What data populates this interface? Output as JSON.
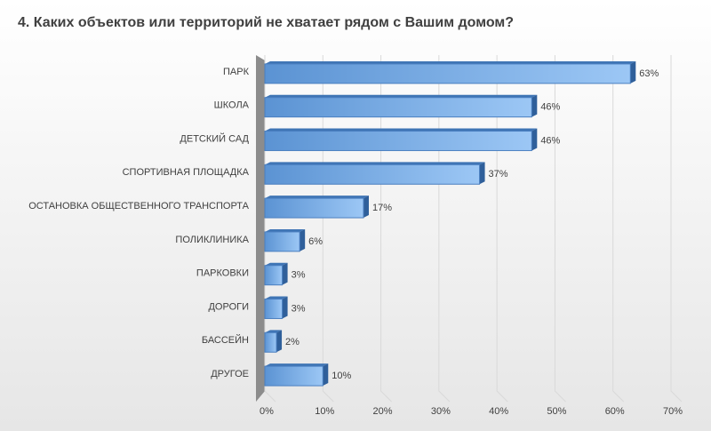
{
  "chart_data": {
    "type": "bar",
    "orientation": "horizontal",
    "title": "4. Каких объектов или территорий не хватает рядом с Вашим домом?",
    "categories": [
      "ПАРК",
      "ШКОЛА",
      "ДЕТСКИЙ САД",
      "СПОРТИВНАЯ ПЛОЩАДКА",
      "ОСТАНОВКА ОБЩЕСТВЕННОГО ТРАНСПОРТА",
      "ПОЛИКЛИНИКА",
      "ПАРКОВКИ",
      "ДОРОГИ",
      "БАССЕЙН",
      "ДРУГОЕ"
    ],
    "values": [
      63,
      46,
      46,
      37,
      17,
      6,
      3,
      3,
      2,
      10
    ],
    "value_labels": [
      "63%",
      "46%",
      "46%",
      "37%",
      "17%",
      "6%",
      "3%",
      "3%",
      "2%",
      "10%"
    ],
    "color": "#5b9bd5",
    "xlim": [
      0,
      70
    ],
    "xticks": [
      {
        "value": 0,
        "label": "0%"
      },
      {
        "value": 10,
        "label": "10%"
      },
      {
        "value": 20,
        "label": "20%"
      },
      {
        "value": 30,
        "label": "30%"
      },
      {
        "value": 40,
        "label": "40%"
      },
      {
        "value": 50,
        "label": "50%"
      },
      {
        "value": 60,
        "label": "60%"
      },
      {
        "value": 70,
        "label": "70%"
      }
    ],
    "grid": true
  }
}
